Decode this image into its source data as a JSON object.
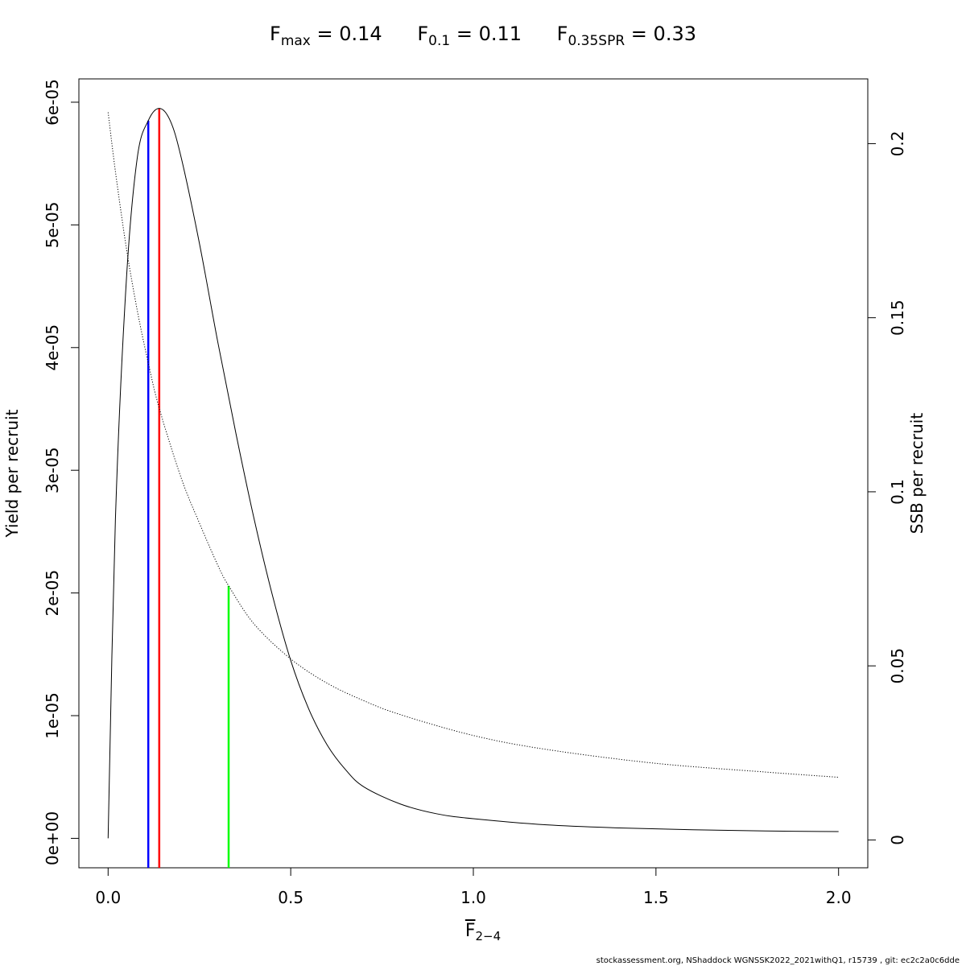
{
  "title": {
    "fmax": {
      "symbol": "F",
      "sub": "max",
      "eq": " = ",
      "value": "0.14"
    },
    "f01": {
      "symbol": "F",
      "sub": "0.1",
      "eq": " = ",
      "value": "0.11"
    },
    "fspr": {
      "symbol": "F",
      "sub": "0.35SPR",
      "eq": " = ",
      "value": "0.33"
    }
  },
  "xlabel": {
    "symbol": "F",
    "sub": "2−4"
  },
  "footer": "stockassessment.org, NShaddock  WGNSSK2022_2021withQ1, r15739 , git: ec2c2a0c6dde",
  "chart_data": {
    "type": "line",
    "xlim": [
      -0.08,
      2.08
    ],
    "x_ticks": [
      "0.0",
      "0.5",
      "1.0",
      "1.5",
      "2.0"
    ],
    "y_left": {
      "label": "Yield per recruit",
      "lim": [
        -2.4e-06,
        6.19e-05
      ],
      "ticks": [
        "0e+00",
        "1e-05",
        "2e-05",
        "3e-05",
        "4e-05",
        "5e-05",
        "6e-05"
      ]
    },
    "y_right": {
      "label": "SSB per recruit",
      "lim": [
        -0.008,
        0.2186
      ],
      "ticks": [
        "0",
        "0.05",
        "0.1",
        "0.15",
        "0.2"
      ]
    },
    "series": [
      {
        "axis": "left",
        "style": "solid",
        "color": "#000000",
        "x": [
          0,
          0.02,
          0.05,
          0.08,
          0.11,
          0.14,
          0.17,
          0.2,
          0.25,
          0.3,
          0.35,
          0.4,
          0.45,
          0.5,
          0.55,
          0.6,
          0.65,
          0.7,
          0.8,
          0.9,
          1.0,
          1.2,
          1.4,
          1.6,
          1.8,
          2.0
        ],
        "y": [
          0,
          2.6e-05,
          4.55e-05,
          5.55e-05,
          5.85e-05,
          5.95e-05,
          5.85e-05,
          5.55e-05,
          4.85e-05,
          4.05e-05,
          3.3e-05,
          2.6e-05,
          1.98e-05,
          1.45e-05,
          1.05e-05,
          7.6e-06,
          5.6e-06,
          4.2e-06,
          2.8e-06,
          2e-06,
          1.6e-06,
          1.1e-06,
          8.5e-07,
          7e-07,
          6e-07,
          5.5e-07
        ]
      },
      {
        "axis": "right",
        "style": "dotted",
        "color": "#000000",
        "x": [
          0,
          0.02,
          0.05,
          0.08,
          0.11,
          0.14,
          0.2,
          0.25,
          0.3,
          0.33,
          0.4,
          0.5,
          0.6,
          0.7,
          0.8,
          1.0,
          1.2,
          1.5,
          1.8,
          2.0
        ],
        "y": [
          0.209,
          0.192,
          0.17,
          0.152,
          0.137,
          0.124,
          0.104,
          0.091,
          0.079,
          0.073,
          0.062,
          0.052,
          0.045,
          0.04,
          0.036,
          0.03,
          0.026,
          0.022,
          0.0195,
          0.018
        ]
      }
    ],
    "reference_lines": [
      {
        "x": 0.11,
        "axis": "left",
        "ymax": 5.85e-05,
        "color": "#0000ff"
      },
      {
        "x": 0.14,
        "axis": "left",
        "ymax": 5.95e-05,
        "color": "#ff0000"
      },
      {
        "x": 0.33,
        "axis": "right",
        "ymax": 0.073,
        "color": "#00ff00"
      }
    ],
    "grid": false,
    "legend": "none"
  }
}
